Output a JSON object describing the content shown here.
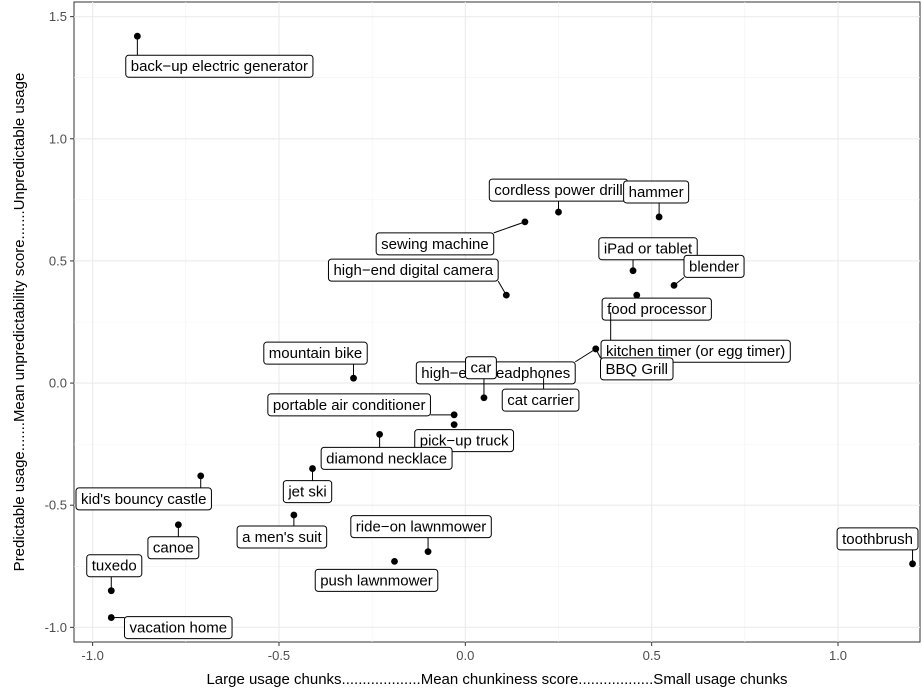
{
  "chart_data": {
    "type": "scatter",
    "title": "",
    "xlabel": "Large usage chunks...................Mean chunkiness score..................Small usage chunks",
    "ylabel": "Predictable usage.......Mean unpredictability score.......Unpredictable usage",
    "xlim": [
      -1.05,
      1.22
    ],
    "ylim": [
      -1.06,
      1.56
    ],
    "x_ticks": [
      "-1.0",
      "-0.5",
      "0.0",
      "0.5",
      "1.0"
    ],
    "y_ticks": [
      "-1.0",
      "-0.5",
      "0.0",
      "0.5",
      "1.0",
      "1.5"
    ],
    "grid": true,
    "legend": "none",
    "points": [
      {
        "label": "back−up electric generator",
        "x": -0.88,
        "y": 1.42
      },
      {
        "label": "cordless power drill",
        "x": 0.25,
        "y": 0.7
      },
      {
        "label": "hammer",
        "x": 0.52,
        "y": 0.68
      },
      {
        "label": "sewing machine",
        "x": 0.16,
        "y": 0.66
      },
      {
        "label": "iPad or tablet",
        "x": 0.45,
        "y": 0.46
      },
      {
        "label": "blender",
        "x": 0.56,
        "y": 0.4
      },
      {
        "label": "high−end digital camera",
        "x": 0.11,
        "y": 0.36
      },
      {
        "label": "food processor",
        "x": 0.46,
        "y": 0.36
      },
      {
        "label": "kitchen timer (or egg timer)",
        "x": 0.39,
        "y": 0.29
      },
      {
        "label": "high−end headphones",
        "x": 0.35,
        "y": 0.14
      },
      {
        "label": "BBQ Grill",
        "x": 0.35,
        "y": 0.14
      },
      {
        "label": "mountain bike",
        "x": -0.3,
        "y": 0.02
      },
      {
        "label": "cat carrier",
        "x": 0.21,
        "y": 0.02
      },
      {
        "label": "car",
        "x": 0.05,
        "y": -0.06
      },
      {
        "label": "portable air conditioner",
        "x": -0.03,
        "y": -0.13
      },
      {
        "label": "pick−up truck",
        "x": -0.03,
        "y": -0.17
      },
      {
        "label": "diamond necklace",
        "x": -0.23,
        "y": -0.21
      },
      {
        "label": "jet ski",
        "x": -0.41,
        "y": -0.35
      },
      {
        "label": "kid's bouncy castle",
        "x": -0.71,
        "y": -0.38
      },
      {
        "label": "a men's suit",
        "x": -0.46,
        "y": -0.54
      },
      {
        "label": "canoe",
        "x": -0.77,
        "y": -0.58
      },
      {
        "label": "ride−on lawnmower",
        "x": -0.1,
        "y": -0.69
      },
      {
        "label": "push lawnmower",
        "x": -0.19,
        "y": -0.73
      },
      {
        "label": "toothbrush",
        "x": 1.2,
        "y": -0.74
      },
      {
        "label": "tuxedo",
        "x": -0.95,
        "y": -0.85
      },
      {
        "label": "vacation home",
        "x": -0.95,
        "y": -0.96
      }
    ]
  }
}
